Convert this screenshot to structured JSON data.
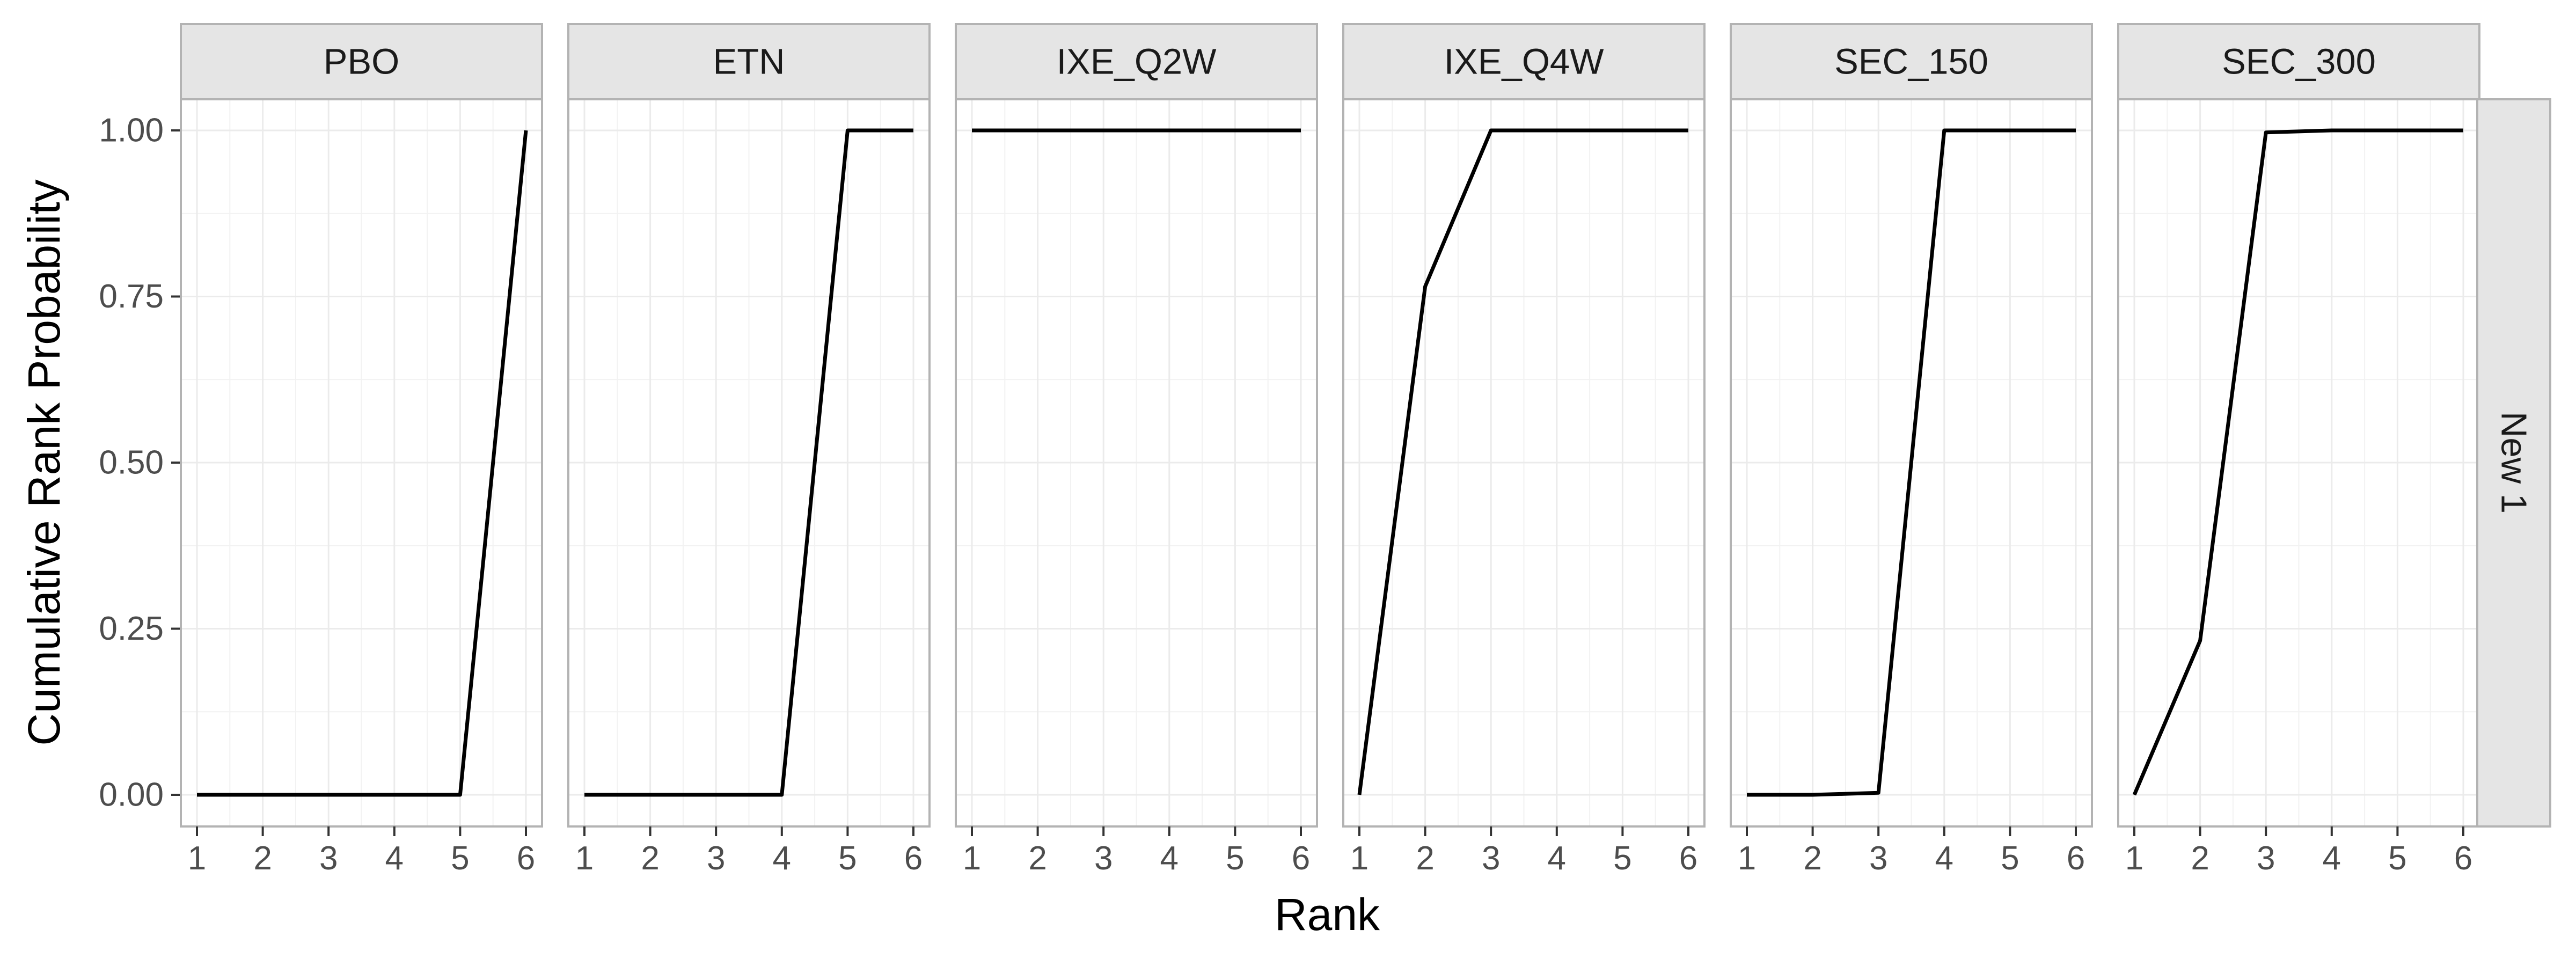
{
  "chart_data": {
    "type": "line",
    "title": "",
    "xlabel": "Rank",
    "ylabel": "Cumulative Rank Probability",
    "facet_row_label": "New 1",
    "x_ticks": [
      1,
      2,
      3,
      4,
      5,
      6
    ],
    "y_ticks": [
      "0.00",
      "0.25",
      "0.50",
      "0.75",
      "1.00"
    ],
    "xlim": [
      1,
      6
    ],
    "ylim": [
      0,
      1
    ],
    "grid": true,
    "line_color": "#000000",
    "panels": [
      {
        "name": "PBO",
        "x": [
          1,
          2,
          3,
          4,
          5,
          6
        ],
        "y": [
          0,
          0,
          0,
          0,
          0,
          1
        ]
      },
      {
        "name": "ETN",
        "x": [
          1,
          2,
          3,
          4,
          5,
          6
        ],
        "y": [
          0,
          0,
          0,
          0,
          1,
          1
        ]
      },
      {
        "name": "IXE_Q2W",
        "x": [
          1,
          2,
          3,
          4,
          5,
          6
        ],
        "y": [
          1,
          1,
          1,
          1,
          1,
          1
        ]
      },
      {
        "name": "IXE_Q4W",
        "x": [
          1,
          2,
          3,
          4,
          5,
          6
        ],
        "y": [
          0,
          0.765,
          1,
          1,
          1,
          1
        ]
      },
      {
        "name": "SEC_150",
        "x": [
          1,
          2,
          3,
          4,
          5,
          6
        ],
        "y": [
          0,
          0,
          0.003,
          1,
          1,
          1
        ]
      },
      {
        "name": "SEC_300",
        "x": [
          1,
          2,
          3,
          4,
          5,
          6
        ],
        "y": [
          0,
          0.232,
          0.997,
          1,
          1,
          1
        ]
      }
    ]
  }
}
